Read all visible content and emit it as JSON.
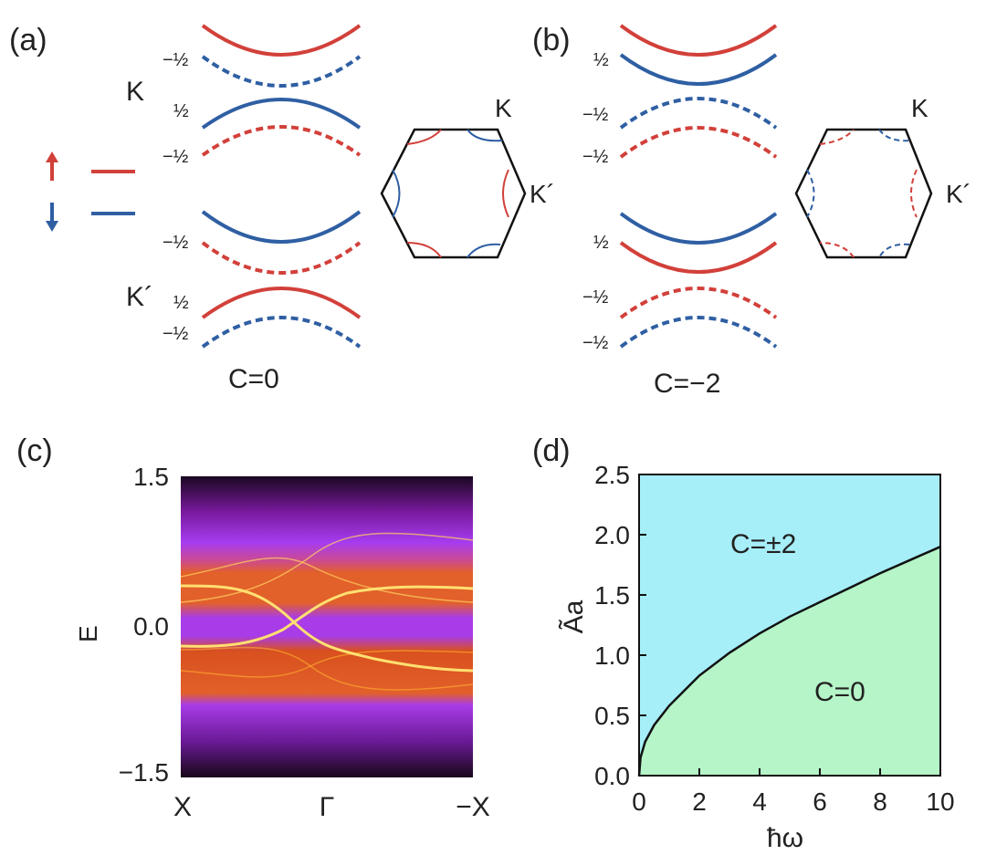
{
  "colors": {
    "spin_up": "#d2403a",
    "spin_down": "#2f5fa3",
    "phase_upper": "#a6eef8",
    "phase_lower": "#b5f5c8",
    "boundary": "#111111"
  },
  "panel_a": {
    "label": "(a)",
    "valley_K": "K",
    "valley_Kp": "K´",
    "spin_labels": [
      "−½",
      "½",
      "−½",
      "−½",
      "½",
      "−½"
    ],
    "chern": "C=0",
    "bz_K": "K",
    "bz_Kp": "K´",
    "legend_up_icon": "arrow-up-icon",
    "legend_down_icon": "arrow-down-icon"
  },
  "panel_b": {
    "label": "(b)",
    "spin_labels": [
      "½",
      "−½",
      "−½",
      "½",
      "−½",
      "−½"
    ],
    "chern": "C=−2",
    "bz_K": "K",
    "bz_Kp": "K´"
  },
  "panel_c": {
    "label": "(c)",
    "ylabel": "E",
    "yticks": [
      "1.5",
      "0.0",
      "−1.5"
    ],
    "xticks": [
      "X",
      "Γ",
      "−X"
    ]
  },
  "panel_d": {
    "label": "(d)",
    "upper_region": "C=±2",
    "lower_region": "C=0"
  },
  "chart_data": {
    "type": "area",
    "xlabel": "ħω",
    "ylabel": "Ãa",
    "xlim": [
      0,
      10
    ],
    "ylim": [
      0,
      2.5
    ],
    "xticks": [
      0,
      2,
      4,
      6,
      8,
      10
    ],
    "yticks": [
      "0.0",
      "0.5",
      "1.0",
      "1.5",
      "2.0",
      "2.5"
    ],
    "boundary": {
      "x": [
        0,
        0.05,
        0.2,
        0.5,
        1,
        2,
        3,
        4,
        5,
        6,
        7,
        8,
        9,
        10
      ],
      "y": [
        0.0,
        0.15,
        0.28,
        0.42,
        0.58,
        0.83,
        1.02,
        1.18,
        1.32,
        1.44,
        1.56,
        1.68,
        1.79,
        1.9
      ]
    }
  }
}
